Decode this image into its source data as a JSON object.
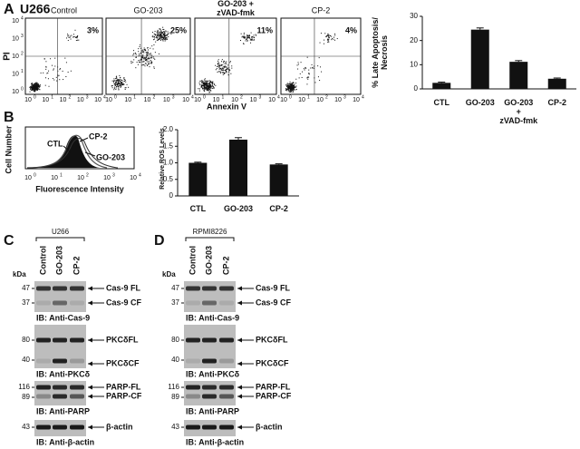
{
  "panel_a": {
    "label": "A",
    "cell_line": "U266",
    "y_axis_label": "PI",
    "x_axis_label": "Annexin V",
    "plots": [
      {
        "title": "Control",
        "percent": "3%"
      },
      {
        "title": "GO-203",
        "percent": "25%"
      },
      {
        "title": "GO-203 +\nzVAD-fmk",
        "percent": "11%"
      },
      {
        "title": "CP-2",
        "percent": "4%"
      }
    ],
    "ticks": [
      {
        "base": "10",
        "exp": "0"
      },
      {
        "base": "10",
        "exp": "1"
      },
      {
        "base": "10",
        "exp": "2"
      },
      {
        "base": "10",
        "exp": "3"
      },
      {
        "base": "10",
        "exp": "4"
      }
    ]
  },
  "panel_b": {
    "label": "B",
    "y_axis_label": "Cell Number",
    "x_axis_label": "Fluorescence Intensity",
    "curve_labels": [
      "CTL",
      "CP-2",
      "GO-203"
    ],
    "ticks": [
      {
        "base": "10",
        "exp": "0"
      },
      {
        "base": "10",
        "exp": "1"
      },
      {
        "base": "10",
        "exp": "2"
      },
      {
        "base": "10",
        "exp": "3"
      },
      {
        "base": "10",
        "exp": "4"
      }
    ]
  },
  "chart_data": [
    {
      "type": "bar",
      "y_label": "% Late Apoptosis/\nNecrosis",
      "categories": [
        "CTL",
        "GO-203",
        "GO-203\n+\nzVAD-fmk",
        "CP-2"
      ],
      "values": [
        2.5,
        24.5,
        11.2,
        4.2
      ],
      "errors": [
        0.3,
        0.7,
        0.5,
        0.3
      ],
      "color": "#111111",
      "ylim": [
        0,
        30
      ],
      "yticks": [
        0,
        10,
        20,
        30
      ]
    },
    {
      "type": "bar",
      "y_label": "Relative ROS Levels",
      "categories": [
        "CTL",
        "GO-203",
        "CP-2"
      ],
      "values": [
        1.0,
        1.7,
        0.95
      ],
      "errors": [
        0.02,
        0.06,
        0.02
      ],
      "color": "#111111",
      "ylim": [
        0,
        2
      ],
      "yticks": [
        0,
        0.5,
        {
          "value": 1,
          "label": "1.0"
        },
        1.5,
        {
          "value": 2,
          "label": "2.0"
        }
      ]
    }
  ],
  "panel_c": {
    "label": "C",
    "cell_line": "U266",
    "kda": "kDa",
    "lanes": [
      "Control",
      "GO-203",
      "CP-2"
    ],
    "blots": [
      {
        "markers": [
          "47",
          "37"
        ],
        "bands": [
          "Cas-9 FL",
          "Cas-9 CF"
        ],
        "antibody": "IB: Anti-Cas-9"
      },
      {
        "markers": [
          "80",
          "40"
        ],
        "bands": [
          "PKCδFL",
          "PKCδCF"
        ],
        "antibody": "IB: Anti-PKCδ"
      },
      {
        "markers": [
          "116",
          "89"
        ],
        "bands": [
          "PARP-FL",
          "PARP-CF"
        ],
        "antibody": "IB: Anti-PARP"
      },
      {
        "markers": [
          "43"
        ],
        "bands": [
          "β-actin"
        ],
        "antibody": "IB: Anti-β-actin"
      }
    ]
  },
  "panel_d": {
    "label": "D",
    "cell_line": "RPMI8226",
    "kda": "kDa",
    "lanes": [
      "Control",
      "GO-203",
      "CP-2"
    ],
    "blots": [
      {
        "markers": [
          "47",
          "37"
        ],
        "bands": [
          "Cas-9 FL",
          "Cas-9 CF"
        ],
        "antibody": "IB: Anti-Cas-9"
      },
      {
        "markers": [
          "80",
          "40"
        ],
        "bands": [
          "PKCδFL",
          "PKCδCF"
        ],
        "antibody": "IB: Anti-PKCδ"
      },
      {
        "markers": [
          "116",
          "89"
        ],
        "bands": [
          "PARP-FL",
          "PARP-CF"
        ],
        "antibody": "IB: Anti-PARP"
      },
      {
        "markers": [
          "43"
        ],
        "bands": [
          "β-actin"
        ],
        "antibody": "IB: Anti-β-actin"
      }
    ]
  }
}
